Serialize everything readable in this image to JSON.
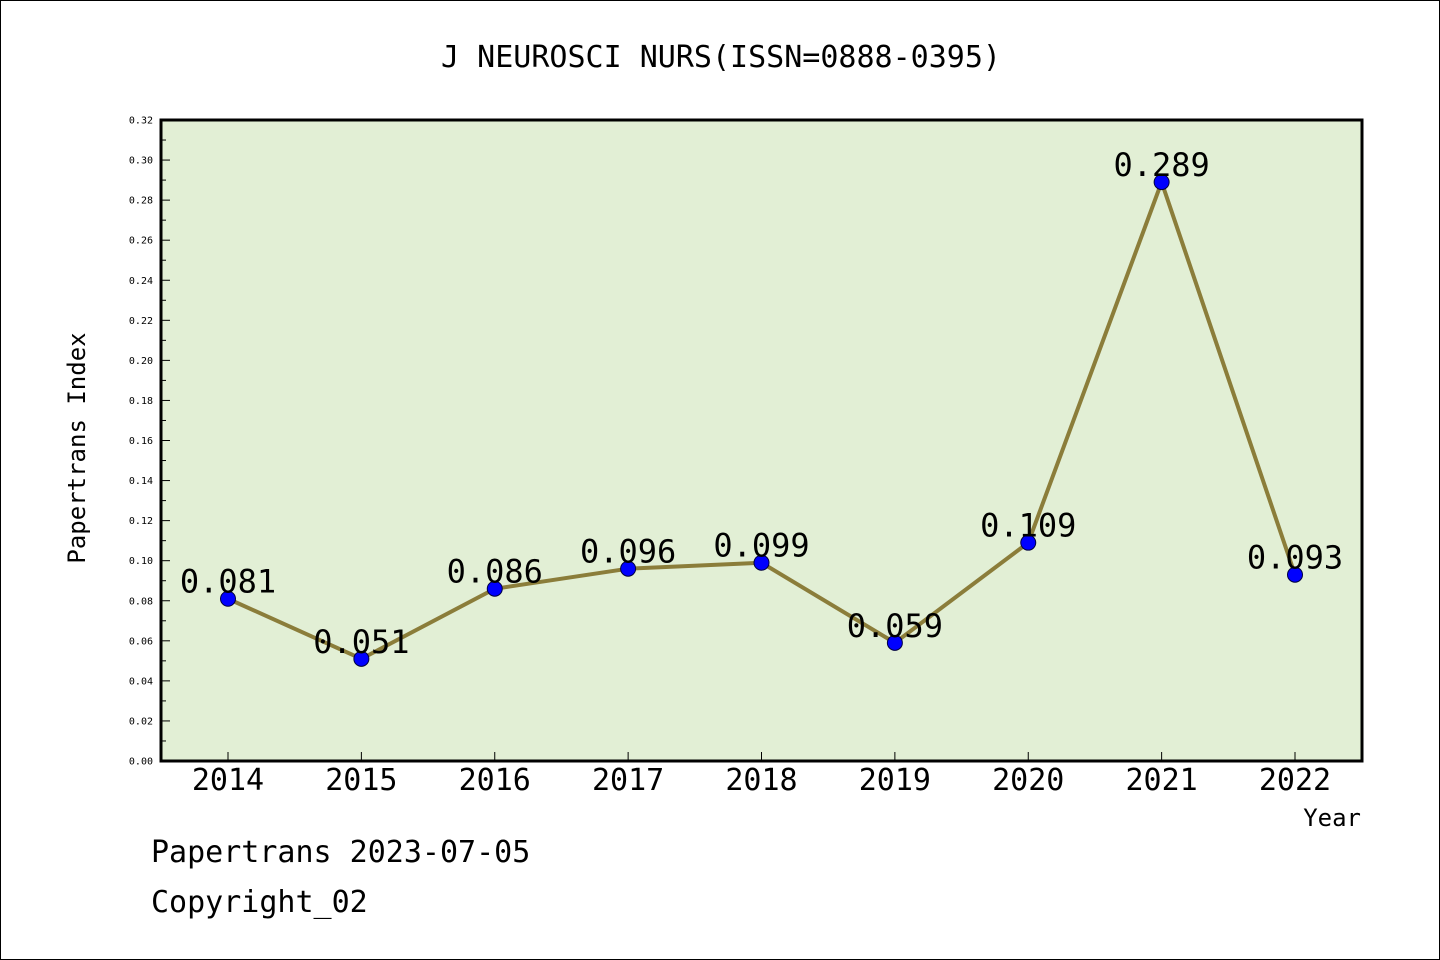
{
  "footer": {
    "source_date": "Papertrans 2023-07-05",
    "copyright": "Copyright_02"
  },
  "colors": {
    "plot_background": "#e2efd5",
    "line": "#8b7d3a",
    "marker": "#0000ff",
    "frame": "#000000"
  },
  "chart_data": {
    "type": "line",
    "title": "J NEUROSCI NURS(ISSN=0888-0395)",
    "xlabel": "Year",
    "ylabel": "Papertrans Index",
    "categories": [
      "2014",
      "2015",
      "2016",
      "2017",
      "2018",
      "2019",
      "2020",
      "2021",
      "2022"
    ],
    "series": [
      {
        "values": [
          0.081,
          0.051,
          0.086,
          0.096,
          0.099,
          0.059,
          0.109,
          0.289,
          0.093
        ],
        "data_labels": [
          "0.081",
          "0.051",
          "0.086",
          "0.096",
          "0.099",
          "0.059",
          "0.109",
          "0.289",
          "0.093"
        ]
      }
    ],
    "ylim": [
      0,
      0.32
    ],
    "yticks": [
      "0.00",
      "0.02",
      "0.04",
      "0.06",
      "0.08",
      "0.10",
      "0.12",
      "0.14",
      "0.16",
      "0.18",
      "0.20",
      "0.22",
      "0.24",
      "0.26",
      "0.28",
      "0.30",
      "0.32"
    ],
    "grid": false,
    "legend": "none"
  }
}
